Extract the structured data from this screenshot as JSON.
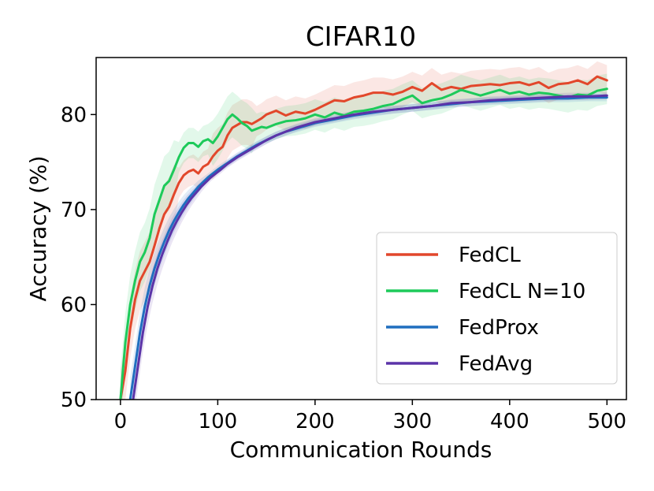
{
  "chart_data": {
    "type": "line",
    "title": "CIFAR10",
    "xlabel": "Communication Rounds",
    "ylabel": "Accuracy (%)",
    "xlim": [
      -25,
      520
    ],
    "ylim": [
      50,
      86
    ],
    "xticks": [
      0,
      100,
      200,
      300,
      400,
      500
    ],
    "yticks": [
      50,
      60,
      70,
      80
    ],
    "legend_position": "lower-right",
    "grid": false,
    "series": [
      {
        "name": "FedCL",
        "color": "#e2472b",
        "x": [
          0,
          5,
          10,
          15,
          20,
          25,
          30,
          35,
          40,
          45,
          50,
          55,
          60,
          65,
          70,
          75,
          80,
          85,
          90,
          95,
          100,
          105,
          110,
          115,
          120,
          125,
          130,
          135,
          140,
          145,
          150,
          160,
          170,
          180,
          190,
          200,
          210,
          220,
          230,
          240,
          250,
          260,
          270,
          280,
          290,
          300,
          310,
          320,
          330,
          340,
          350,
          360,
          370,
          380,
          390,
          400,
          410,
          420,
          430,
          440,
          450,
          460,
          470,
          480,
          490,
          500
        ],
        "y": [
          50,
          53,
          57.5,
          60.5,
          62.5,
          63.5,
          64.5,
          66.2,
          68,
          69.5,
          70.3,
          71.6,
          72.8,
          73.6,
          74,
          74.2,
          73.8,
          74.5,
          74.8,
          75.6,
          76.2,
          76.6,
          77.8,
          78.6,
          78.9,
          79.2,
          79.2,
          79,
          79.3,
          79.6,
          80,
          80.4,
          79.9,
          80.3,
          80.1,
          80.5,
          81,
          81.5,
          81.4,
          81.8,
          82,
          82.3,
          82.3,
          82.1,
          82.4,
          82.9,
          82.5,
          83.3,
          82.6,
          82.9,
          82.7,
          83,
          83.1,
          83.2,
          83.1,
          83.3,
          83.4,
          83.1,
          83.4,
          82.8,
          83.2,
          83.3,
          83.6,
          83.2,
          84,
          83.6
        ]
      },
      {
        "name": "FedCL N=10",
        "color": "#1dca5a",
        "x": [
          0,
          5,
          10,
          15,
          20,
          25,
          30,
          35,
          40,
          45,
          50,
          55,
          60,
          65,
          70,
          75,
          80,
          85,
          90,
          95,
          100,
          105,
          110,
          115,
          120,
          125,
          130,
          135,
          140,
          145,
          150,
          160,
          170,
          180,
          190,
          200,
          210,
          220,
          230,
          240,
          250,
          260,
          270,
          280,
          290,
          300,
          310,
          320,
          330,
          340,
          350,
          360,
          370,
          380,
          390,
          400,
          410,
          420,
          430,
          440,
          450,
          460,
          470,
          480,
          490,
          500
        ],
        "y": [
          50,
          56,
          60,
          62.5,
          64.5,
          65.5,
          67,
          69.5,
          71,
          72.5,
          73,
          74.2,
          75.5,
          76.5,
          77,
          77,
          76.6,
          77.2,
          77.4,
          77,
          77.7,
          78.6,
          79.5,
          80,
          79.6,
          79.1,
          78.8,
          78.3,
          78.5,
          78.7,
          78.6,
          79,
          79.3,
          79.4,
          79.6,
          80,
          79.7,
          80.2,
          79.9,
          80.3,
          80.4,
          80.6,
          80.9,
          81.1,
          81.6,
          82,
          81.2,
          81.5,
          81.7,
          82.1,
          82.6,
          82.3,
          82,
          82.3,
          82.6,
          82.2,
          82.4,
          82.1,
          82.3,
          82.2,
          82,
          81.8,
          82.1,
          82,
          82.5,
          82.7
        ]
      },
      {
        "name": "FedProx",
        "color": "#1f6fbf",
        "x": [
          10,
          15,
          20,
          25,
          30,
          35,
          40,
          45,
          50,
          55,
          60,
          65,
          70,
          75,
          80,
          85,
          90,
          95,
          100,
          110,
          120,
          130,
          140,
          150,
          160,
          170,
          180,
          190,
          200,
          220,
          240,
          260,
          280,
          300,
          320,
          340,
          360,
          380,
          400,
          420,
          440,
          460,
          480,
          500
        ],
        "y": [
          50,
          53.5,
          57,
          59.8,
          62,
          63.8,
          65.3,
          66.6,
          67.8,
          68.8,
          69.7,
          70.5,
          71.2,
          71.8,
          72.4,
          72.9,
          73.4,
          73.8,
          74.2,
          74.9,
          75.6,
          76.2,
          76.8,
          77.3,
          77.8,
          78.2,
          78.5,
          78.8,
          79.1,
          79.5,
          79.9,
          80.2,
          80.5,
          80.7,
          80.9,
          81.1,
          81.3,
          81.4,
          81.5,
          81.6,
          81.7,
          81.7,
          81.8,
          81.8
        ]
      },
      {
        "name": "FedAvg",
        "color": "#5b34a8",
        "x": [
          13,
          18,
          23,
          28,
          33,
          38,
          43,
          48,
          53,
          58,
          63,
          68,
          73,
          78,
          83,
          88,
          93,
          98,
          103,
          110,
          120,
          130,
          140,
          150,
          160,
          170,
          180,
          190,
          200,
          220,
          240,
          260,
          280,
          300,
          320,
          340,
          360,
          380,
          400,
          420,
          440,
          460,
          480,
          500
        ],
        "y": [
          50,
          53.5,
          57,
          59.8,
          62,
          63.8,
          65.3,
          66.6,
          67.8,
          68.8,
          69.7,
          70.5,
          71.2,
          71.8,
          72.4,
          72.9,
          73.4,
          73.8,
          74.2,
          74.8,
          75.5,
          76.1,
          76.7,
          77.3,
          77.8,
          78.2,
          78.6,
          78.9,
          79.2,
          79.6,
          80,
          80.3,
          80.5,
          80.7,
          80.9,
          81.2,
          81.3,
          81.5,
          81.6,
          81.7,
          81.8,
          81.9,
          81.9,
          82
        ]
      }
    ]
  }
}
